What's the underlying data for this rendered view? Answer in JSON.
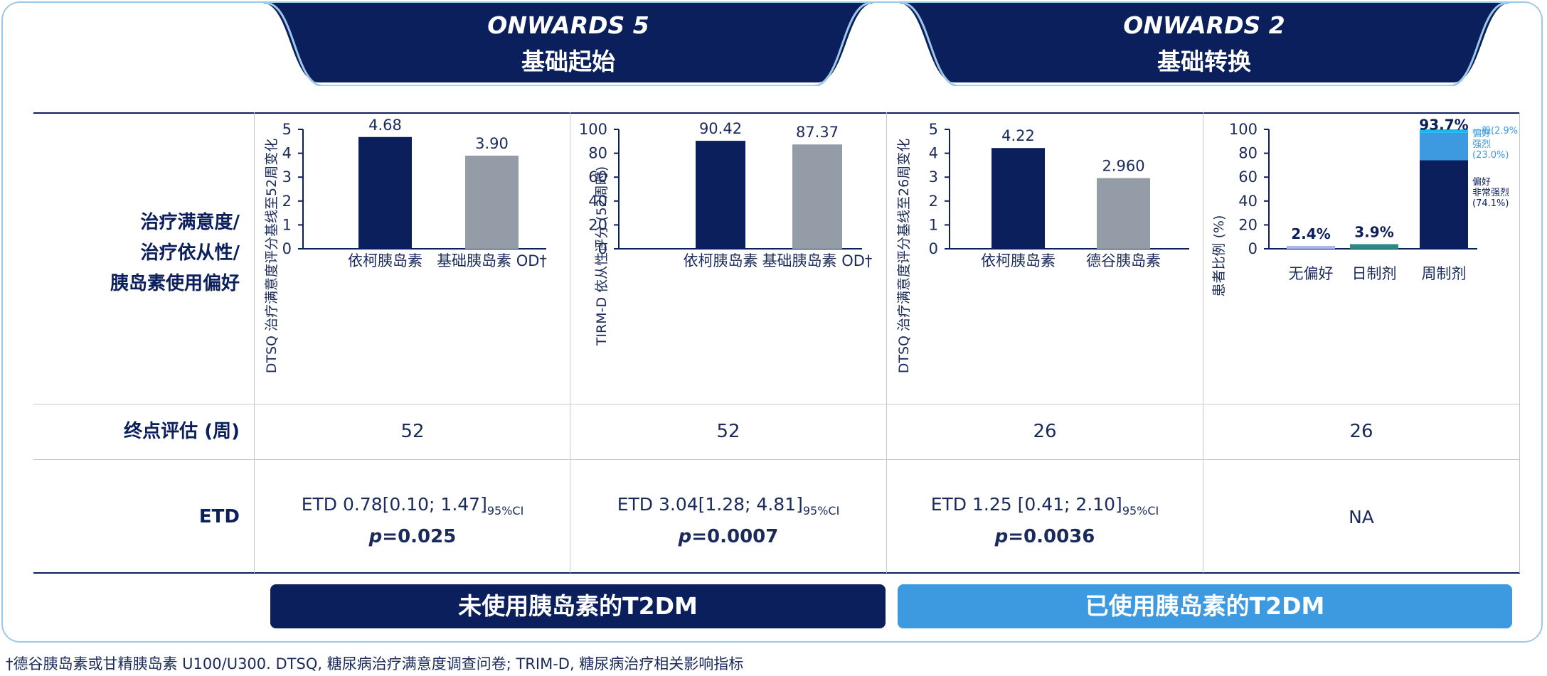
{
  "header": {
    "study1_name": "ONWARDS 5",
    "study1_sub": "基础起始",
    "study2_name": "ONWARDS 2",
    "study2_sub": "基础转换"
  },
  "rows": {
    "chart_row_label": "治疗满意度/\n治疗依从性/\n胰岛素使用偏好",
    "endpoint_label": "终点评估 (周)",
    "etd_label": "ETD"
  },
  "endpoints": [
    "52",
    "52",
    "26",
    "26"
  ],
  "etd": [
    {
      "text": "ETD 0.78[0.10; 1.47]",
      "ci": "95%CI",
      "p_label": "p",
      "p_value": "=0.025"
    },
    {
      "text": "ETD 3.04[1.28; 4.81]",
      "ci": "95%CI",
      "p_label": "p",
      "p_value": "=0.0007"
    },
    {
      "text": "ETD 1.25 [0.41; 2.10]",
      "ci": "95%CI",
      "p_label": "p",
      "p_value": "=0.0036"
    },
    {
      "text": "NA"
    }
  ],
  "banners": {
    "left": "未使用胰岛素的T2DM",
    "right": "已使用胰岛素的T2DM"
  },
  "footnote": "†德谷胰岛素或甘精胰岛素 U100/U300. DTSQ, 糖尿病治疗满意度调查问卷; TRIM-D, 糖尿病治疗相关影响指标",
  "colors": {
    "navy": "#0b1f5c",
    "gray": "#949ca8",
    "light_blue": "#3d9ae0",
    "sky": "#17b8ec",
    "teal": "#2a8a86",
    "lavender": "#a9b8e4",
    "frame": "#9fc8e8"
  },
  "chart_data": [
    {
      "type": "bar",
      "ylabel": "DTSQ 治疗满意度评分基线至52周变化",
      "ylim": [
        0,
        5
      ],
      "yticks": [
        0,
        1,
        2,
        3,
        4,
        5
      ],
      "categories": [
        "依柯胰岛素",
        "基础胰岛素 OD†"
      ],
      "values": [
        4.68,
        3.9
      ],
      "value_labels": [
        "4.68",
        "3.90"
      ]
    },
    {
      "type": "bar",
      "ylabel": "TIRM-D 依从性评分 (52周时)",
      "ylim": [
        0,
        100
      ],
      "yticks": [
        0,
        20,
        40,
        60,
        80,
        100
      ],
      "categories": [
        "依柯胰岛素",
        "基础胰岛素 OD†"
      ],
      "values": [
        90.42,
        87.37
      ],
      "value_labels": [
        "90.42",
        "87.37"
      ]
    },
    {
      "type": "bar",
      "ylabel": "DTSQ 治疗满意度评分基线至26周变化",
      "ylim": [
        0,
        5
      ],
      "yticks": [
        0,
        1,
        2,
        3,
        4,
        5
      ],
      "categories": [
        "依柯胰岛素",
        "德谷胰岛素"
      ],
      "values": [
        4.22,
        2.96
      ],
      "value_labels": [
        "4.22",
        "2.960"
      ]
    },
    {
      "type": "bar",
      "stacked": true,
      "ylabel": "患者比例 (%)",
      "ylim": [
        0,
        100
      ],
      "yticks": [
        0,
        20,
        40,
        60,
        80,
        100
      ],
      "categories": [
        "无偏好",
        "日制剂",
        "周制剂"
      ],
      "values": [
        2.4,
        3.9,
        93.7
      ],
      "value_labels": [
        "2.4%",
        "3.9%",
        "93.7%"
      ],
      "stack_segments": [
        {
          "name": "偏好\n非常强烈\n(74.1%)",
          "value": 74.1
        },
        {
          "name": "偏好\n强烈\n(23.0%)",
          "value": 23.0
        },
        {
          "name": "一般(2.9%)",
          "value": 2.9
        }
      ]
    }
  ]
}
